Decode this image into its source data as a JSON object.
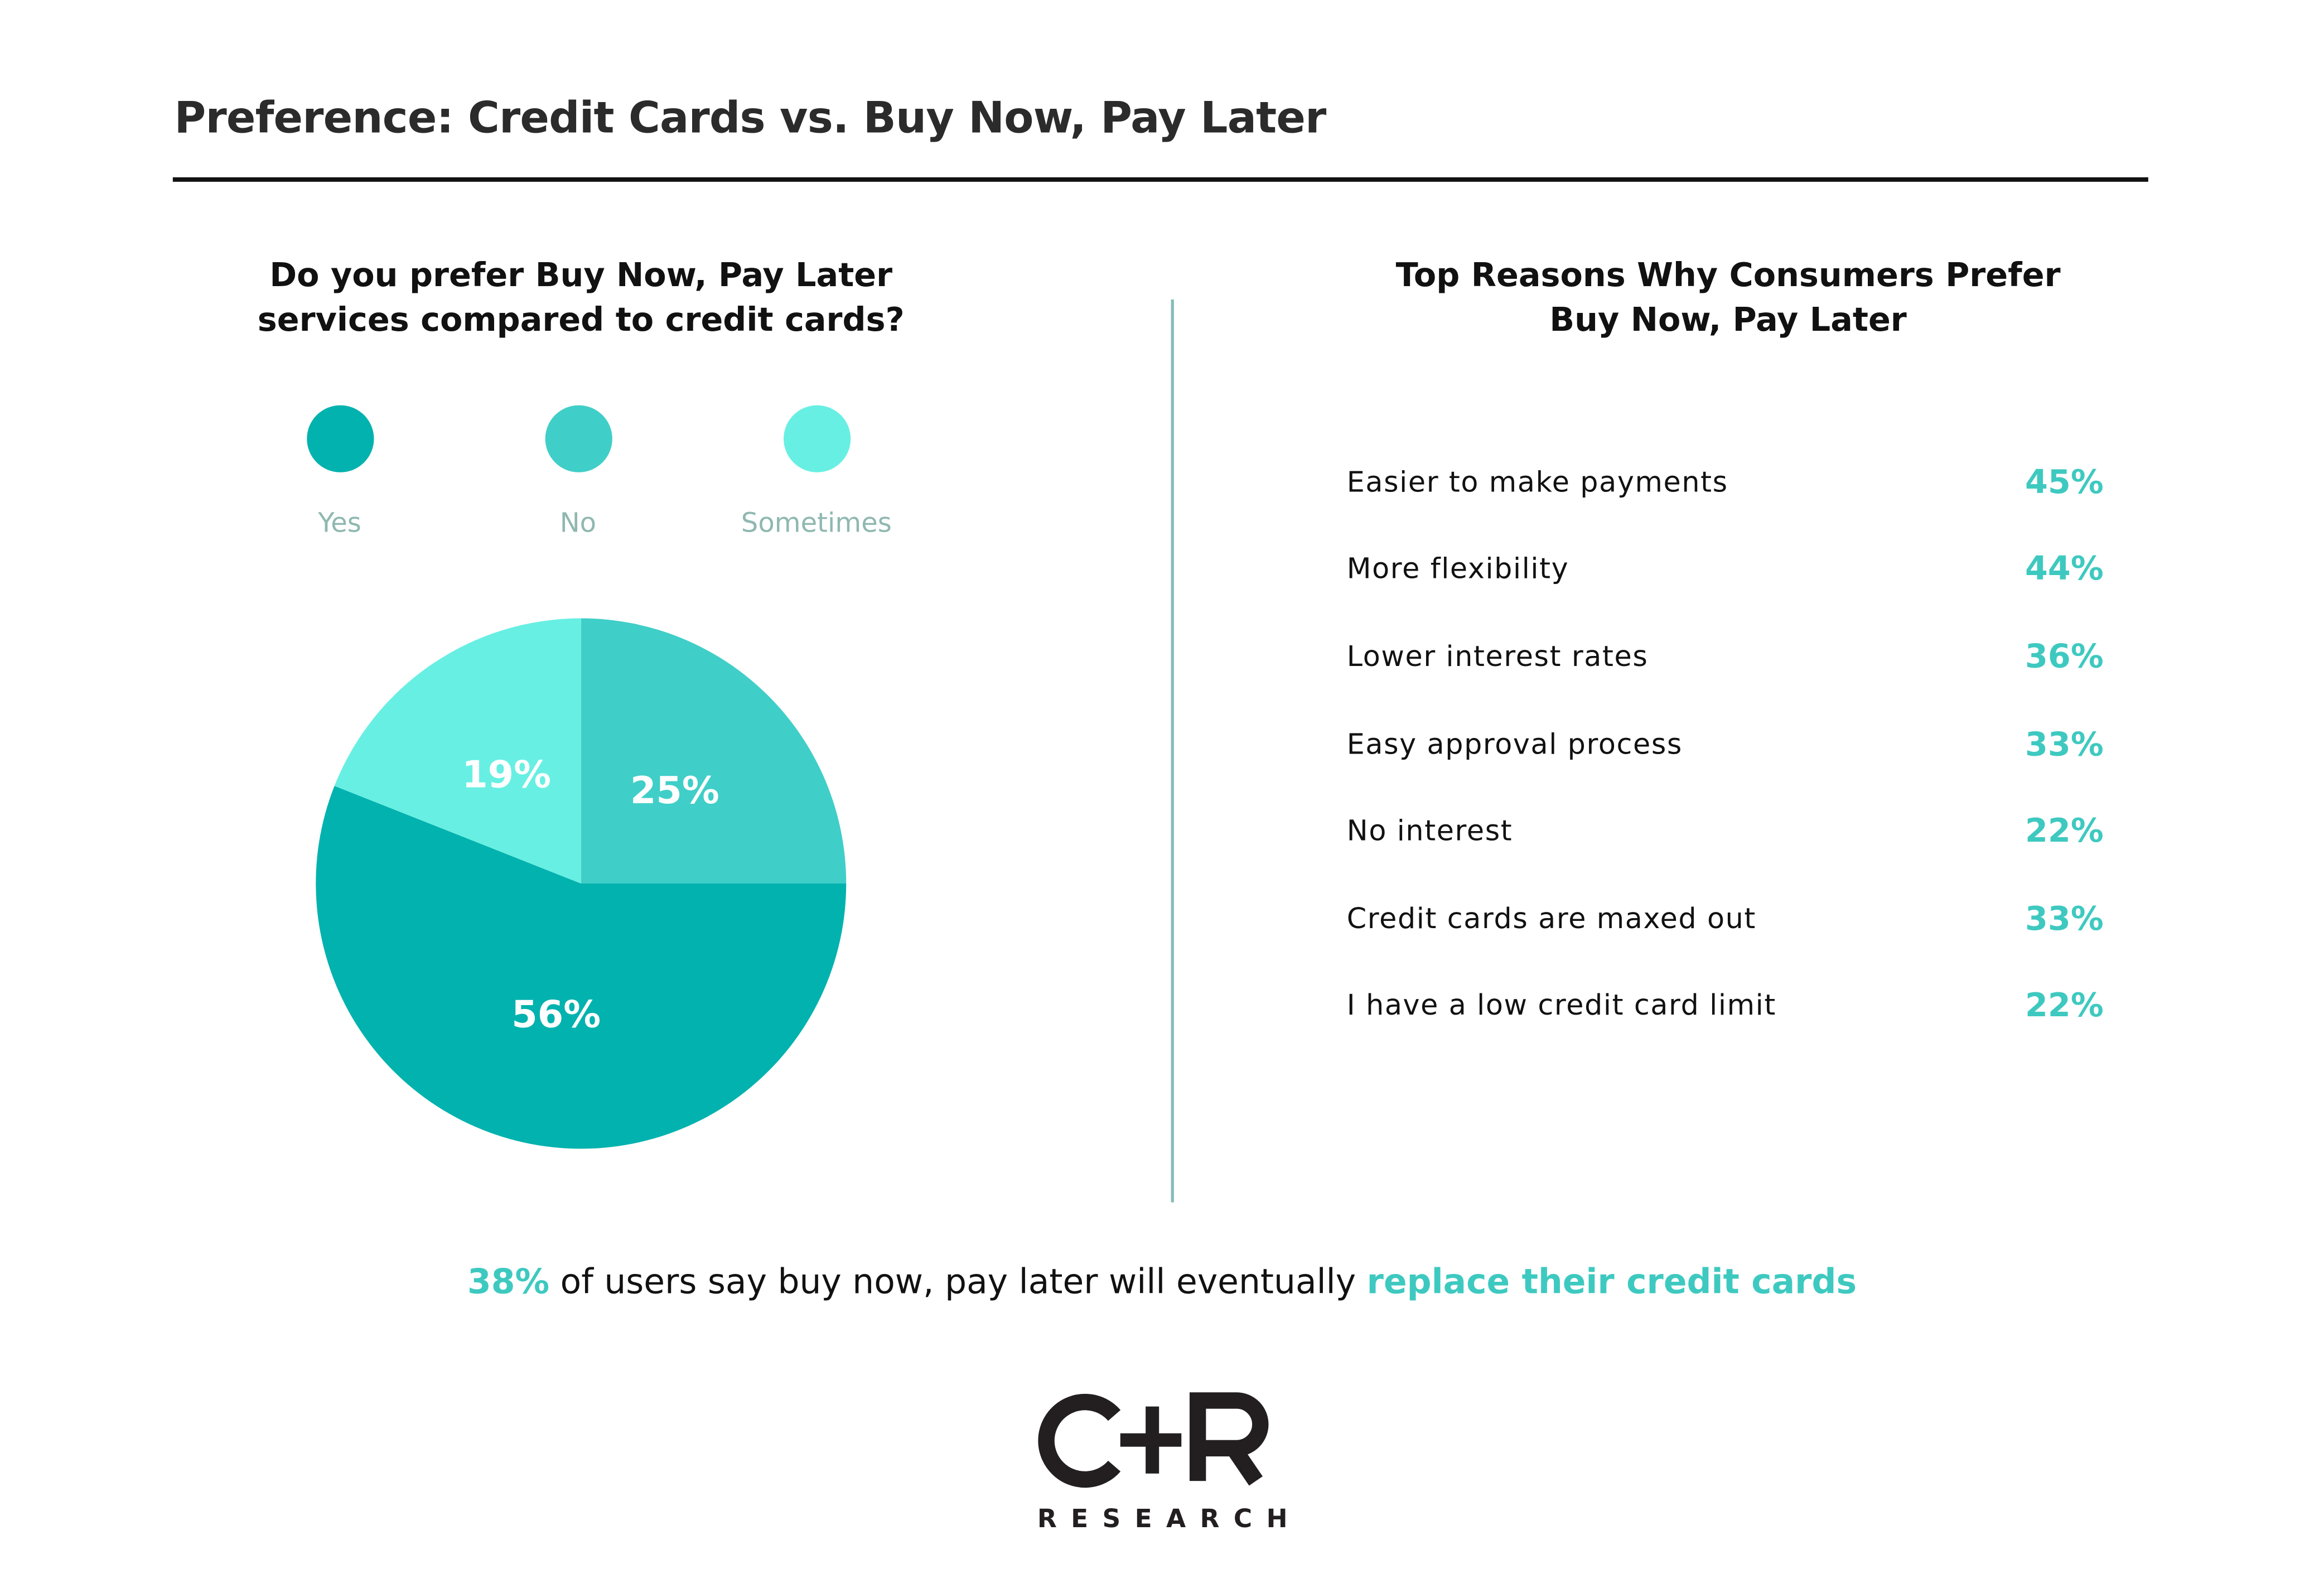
{
  "title": "Preference: Credit Cards vs. Buy Now, Pay Later",
  "left": {
    "question_line1": "Do you prefer Buy Now, Pay Later",
    "question_line2": "services compared to credit cards?"
  },
  "right": {
    "title_line1": "Top Reasons Why Consumers Prefer",
    "title_line2": "Buy Now, Pay Later",
    "reasons": [
      {
        "label": "Easier to make payments",
        "value": "45%"
      },
      {
        "label": "More flexibility",
        "value": "44%"
      },
      {
        "label": "Lower interest rates",
        "value": "36%"
      },
      {
        "label": "Easy approval process",
        "value": "33%"
      },
      {
        "label": "No interest",
        "value": "22%"
      },
      {
        "label": "Credit cards are maxed out",
        "value": "33%"
      },
      {
        "label": "I have a low credit card limit",
        "value": "22%"
      }
    ]
  },
  "footer": {
    "highlight_value": "38%",
    "text": " of users say buy now, pay later will eventually ",
    "highlight_text": "replace their credit cards"
  },
  "logo": {
    "mark": "C+R",
    "sub": "RESEARCH"
  },
  "colors": {
    "yes": "#02b2ae",
    "no": "#40cec8",
    "sometimes": "#68efe3",
    "accent": "#3ec9c0"
  },
  "chart_data": {
    "type": "pie",
    "legend_placement": "top",
    "slices": [
      {
        "name": "No",
        "value": 25,
        "label": "25%",
        "color": "#40cec8"
      },
      {
        "name": "Yes",
        "value": 56,
        "label": "56%",
        "color": "#02b2ae"
      },
      {
        "name": "Sometimes",
        "value": 19,
        "label": "19%",
        "color": "#68efe3"
      }
    ],
    "legend": [
      "Yes",
      "No",
      "Sometimes"
    ]
  }
}
